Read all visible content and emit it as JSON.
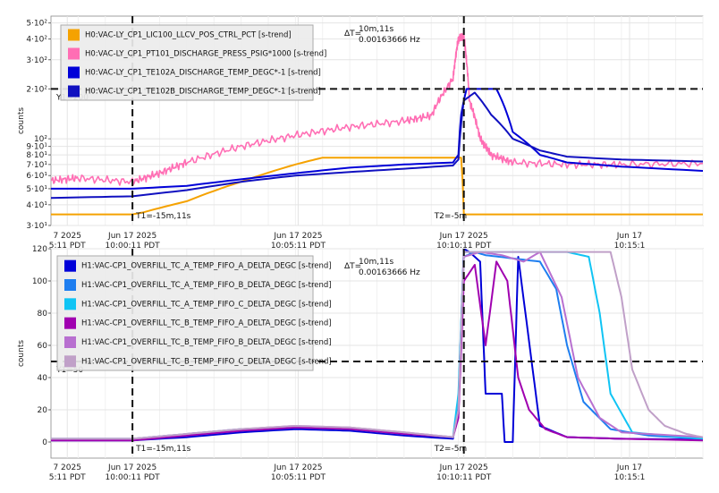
{
  "colors": {
    "orange": "#f5a200",
    "pink": "#ff6eb4",
    "blue": "#0000d8",
    "blue2": "#1010c0",
    "dodger": "#1e7ef0",
    "cyan": "#10c4f4",
    "purple": "#a000b0",
    "orchid": "#b870d0",
    "mauve": "#c0a0c8",
    "grid": "#e4e4e4",
    "cursor": "#111111"
  },
  "time_ticks": [
    {
      "line1": "7 2025",
      "line2": "5:11 PDT"
    },
    {
      "line1": "Jun 17 2025",
      "line2": "10:00:11 PDT"
    },
    {
      "line1": "Jun 17 2025",
      "line2": "10:05:11 PDT"
    },
    {
      "line1": "Jun 17 2025",
      "line2": "10:10:11 PDT"
    },
    {
      "line1": "Jun 17",
      "line2": "10:15:1"
    }
  ],
  "chart_data": [
    {
      "type": "line",
      "ylabel": "counts",
      "y_scale": "log",
      "ylim": [
        30,
        550
      ],
      "xlim": [
        -1.5,
        10.5
      ],
      "yticks": [
        {
          "value": 30,
          "label": "3·10¹"
        },
        {
          "value": 40,
          "label": "4·10¹"
        },
        {
          "value": 50,
          "label": "5·10¹"
        },
        {
          "value": 60,
          "label": "6·10¹"
        },
        {
          "value": 70,
          "label": "7·10¹"
        },
        {
          "value": 80,
          "label": "8·10¹"
        },
        {
          "value": 90,
          "label": "9·10¹"
        },
        {
          "value": 100,
          "label": "10²"
        },
        {
          "value": 200,
          "label": "2·10²"
        },
        {
          "value": 300,
          "label": "3·10²"
        },
        {
          "value": 400,
          "label": "4·10²"
        },
        {
          "value": 500,
          "label": "5·10²"
        }
      ],
      "cursor_y": {
        "value": 200,
        "label": "Y1=200"
      },
      "cursors_x": [
        {
          "value": 0,
          "label": "T1=-15m,11s"
        },
        {
          "value": 6.1,
          "label": "T2=-5m"
        }
      ],
      "delta": {
        "prefix": "ΔT=",
        "line1": "10m,11s",
        "line2": "0.00163666 Hz"
      },
      "series": [
        {
          "name": "H0:VAC-LY_CP1_LIC100_LLCV_POS_CTRL_PCT [s-trend]",
          "color": "#f5a200",
          "x": [
            -1.5,
            0,
            0.2,
            1,
            2,
            3,
            3.5,
            4,
            5,
            6.0,
            6.05,
            6.1,
            10.5
          ],
          "y": [
            35,
            35,
            36,
            42,
            55,
            70,
            77,
            77,
            77,
            77,
            77,
            35,
            35
          ]
        },
        {
          "name": "H0:VAC-LY_CP1_PT101_DISCHARGE_PRESS_PSIG*1000 [s-trend]",
          "color": "#ff6eb4",
          "x": [
            -1.5,
            -1,
            0,
            0.5,
            1,
            2,
            3,
            4,
            5,
            5.5,
            5.9,
            6.0,
            6.1,
            6.2,
            6.4,
            6.6,
            7.0,
            8.0,
            9.0,
            10.5
          ],
          "y": [
            56,
            58,
            55,
            62,
            72,
            90,
            105,
            118,
            128,
            138,
            230,
            400,
            420,
            170,
            100,
            80,
            72,
            70,
            70,
            71
          ]
        },
        {
          "name": "H0:VAC-LY_CP1_TE102A_DISCHARGE_TEMP_DEGC*-1 [s-trend]",
          "color": "#0000d8",
          "x": [
            -1.5,
            0,
            1,
            2,
            3,
            4,
            5,
            5.9,
            6.0,
            6.05,
            6.15,
            6.3,
            6.4,
            6.7,
            7.0,
            7.5,
            8,
            9,
            10.5
          ],
          "y": [
            50,
            50,
            52,
            57,
            62,
            67,
            70,
            72,
            80,
            140,
            200,
            200,
            200,
            200,
            110,
            80,
            72,
            68,
            64
          ]
        },
        {
          "name": "H0:VAC-LY_CP1_TE102B_DISCHARGE_TEMP_DEGC*-1 [s-trend]",
          "color": "#1010c0",
          "x": [
            -1.5,
            0,
            1,
            2,
            3,
            4,
            5,
            5.9,
            6.0,
            6.1,
            6.3,
            6.6,
            7.0,
            7.5,
            8,
            9,
            10.5
          ],
          "y": [
            44,
            45,
            49,
            55,
            60,
            63,
            66,
            69,
            75,
            170,
            190,
            140,
            100,
            85,
            78,
            75,
            73
          ]
        }
      ]
    },
    {
      "type": "line",
      "ylabel": "counts",
      "ylim": [
        -10,
        120
      ],
      "xlim": [
        -1.5,
        10.5
      ],
      "yticks": [
        {
          "value": 0,
          "label": "0"
        },
        {
          "value": 20,
          "label": "20"
        },
        {
          "value": 40,
          "label": "40"
        },
        {
          "value": 60,
          "label": "60"
        },
        {
          "value": 80,
          "label": "80"
        },
        {
          "value": 100,
          "label": "100"
        },
        {
          "value": 120,
          "label": "120"
        }
      ],
      "cursor_y": {
        "value": 50,
        "label": "Y1=50"
      },
      "cursors_x": [
        {
          "value": 0,
          "label": "T1=-15m,11s"
        },
        {
          "value": 6.1,
          "label": "T2=-5m"
        }
      ],
      "delta": {
        "prefix": "ΔT=",
        "line1": "10m,11s",
        "line2": "0.00163666 Hz"
      },
      "series": [
        {
          "name": "H1:VAC-CP1_OVERFILL_TC_A_TEMP_FIFO_A_DELTA_DEGC [s-trend]",
          "color": "#0000d8",
          "x": [
            -1.5,
            0,
            1,
            2,
            3,
            4,
            5,
            5.9,
            6.0,
            6.1,
            6.2,
            6.4,
            6.5,
            6.6,
            6.8,
            6.85,
            6.9,
            7.0,
            7.1,
            7.5,
            8,
            9,
            10.5
          ],
          "y": [
            1,
            1,
            3,
            6,
            8,
            7,
            4,
            2,
            25,
            120,
            118,
            112,
            30,
            30,
            30,
            0,
            0,
            0,
            115,
            10,
            3,
            2,
            1.5
          ]
        },
        {
          "name": "H1:VAC-CP1_OVERFILL_TC_A_TEMP_FIFO_B_DELTA_DEGC [s-trend]",
          "color": "#1e7ef0",
          "x": [
            -1.5,
            0,
            1,
            2,
            3,
            4,
            5,
            5.9,
            6.0,
            6.1,
            6.3,
            6.5,
            7.0,
            7.5,
            7.8,
            8.0,
            8.3,
            8.8,
            9.5,
            10.5
          ],
          "y": [
            1.5,
            1.5,
            4,
            7,
            9,
            8,
            5,
            3,
            20,
            115,
            118,
            116,
            114,
            112,
            95,
            60,
            25,
            8,
            4,
            2
          ]
        },
        {
          "name": "H1:VAC-CP1_OVERFILL_TC_A_TEMP_FIFO_C_DELTA_DEGC [s-trend]",
          "color": "#10c4f4",
          "x": [
            -1.5,
            0,
            1,
            2,
            3,
            4,
            5,
            5.9,
            6.0,
            6.1,
            6.5,
            7.0,
            7.5,
            8.0,
            8.4,
            8.6,
            8.8,
            9.2,
            9.8,
            10.5
          ],
          "y": [
            2,
            2,
            5,
            8,
            9,
            8,
            5,
            3,
            30,
            118,
            118,
            118,
            118,
            118,
            115,
            80,
            30,
            6,
            4,
            2
          ]
        },
        {
          "name": "H1:VAC-CP1_OVERFILL_TC_B_TEMP_FIFO_A_DELTA_DEGC [s-trend]",
          "color": "#a000b0",
          "x": [
            -1.5,
            0,
            1,
            2,
            3,
            4,
            5,
            5.9,
            6.0,
            6.1,
            6.3,
            6.5,
            6.7,
            6.9,
            7.1,
            7.3,
            7.6,
            8.0,
            9.0,
            10.5
          ],
          "y": [
            1,
            1,
            4,
            7,
            9,
            8,
            5,
            3,
            15,
            100,
            110,
            60,
            112,
            100,
            40,
            20,
            8,
            3,
            2,
            1
          ]
        },
        {
          "name": "H1:VAC-CP1_OVERFILL_TC_B_TEMP_FIFO_B_DELTA_DEGC [s-trend]",
          "color": "#b870d0",
          "x": [
            -1.5,
            0,
            1,
            2,
            3,
            4,
            5,
            5.9,
            6.0,
            6.1,
            6.4,
            6.8,
            7.2,
            7.5,
            7.9,
            8.2,
            8.6,
            9.0,
            10.5
          ],
          "y": [
            2,
            2,
            5,
            8,
            10,
            9,
            6,
            3,
            20,
            115,
            118,
            116,
            112,
            118,
            90,
            40,
            15,
            6,
            3
          ]
        },
        {
          "name": "H1:VAC-CP1_OVERFILL_TC_B_TEMP_FIFO_C_DELTA_DEGC [s-trend]",
          "color": "#c0a0c8",
          "x": [
            -1.5,
            0,
            1,
            2,
            3,
            4,
            5,
            5.9,
            6.0,
            6.1,
            7.0,
            8.0,
            8.8,
            9.0,
            9.2,
            9.5,
            9.8,
            10.2,
            10.5
          ],
          "y": [
            2,
            2,
            5,
            8,
            10,
            9,
            6,
            3,
            20,
            118,
            118,
            118,
            118,
            90,
            45,
            20,
            10,
            5,
            3
          ]
        }
      ]
    }
  ]
}
